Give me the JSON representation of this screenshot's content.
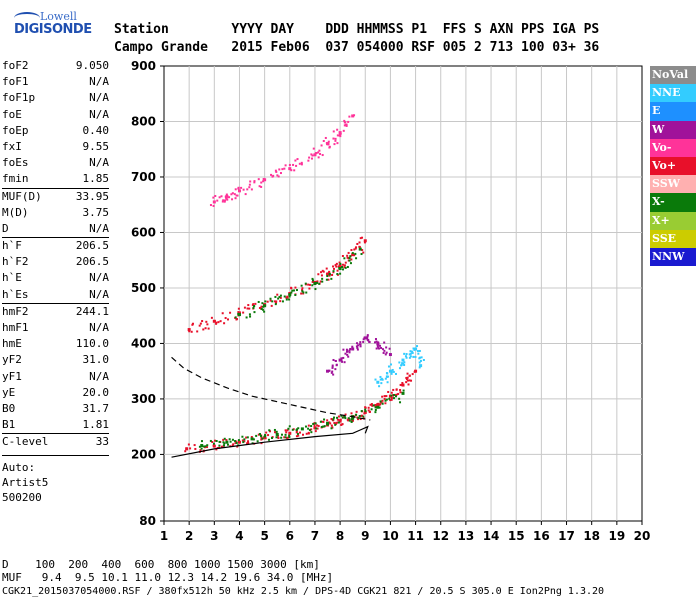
{
  "logo": {
    "line1": "Lowell",
    "line2": "DIGISONDE"
  },
  "header": {
    "line1": "Station        YYYY DAY    DDD HHMMSS P1  FFS S AXN PPS IGA PS",
    "line2": "Campo Grande   2015 Feb06  037 054000 RSF 005 2 713 100 03+ 36"
  },
  "params": [
    {
      "k": "foF2",
      "v": "9.050"
    },
    {
      "k": "foF1",
      "v": "N/A"
    },
    {
      "k": "foF1p",
      "v": "N/A"
    },
    {
      "k": "foE",
      "v": "N/A"
    },
    {
      "k": "foEp",
      "v": "0.40"
    },
    {
      "k": "fxI",
      "v": "9.55"
    },
    {
      "k": "foEs",
      "v": "N/A"
    },
    {
      "k": "fmin",
      "v": "1.85"
    },
    {
      "k": "MUF(D)",
      "v": "33.95",
      "sep": true
    },
    {
      "k": "M(D)",
      "v": "3.75"
    },
    {
      "k": "D",
      "v": "N/A"
    },
    {
      "k": "h`F",
      "v": "206.5",
      "sep": true
    },
    {
      "k": "h`F2",
      "v": "206.5"
    },
    {
      "k": "h`E",
      "v": "N/A"
    },
    {
      "k": "h`Es",
      "v": "N/A"
    },
    {
      "k": "hmF2",
      "v": "244.1",
      "sep": true
    },
    {
      "k": "hmF1",
      "v": "N/A"
    },
    {
      "k": "hmE",
      "v": "110.0"
    },
    {
      "k": "yF2",
      "v": "31.0"
    },
    {
      "k": "yF1",
      "v": "N/A"
    },
    {
      "k": "yE",
      "v": "20.0"
    },
    {
      "k": "B0",
      "v": "31.7"
    },
    {
      "k": "B1",
      "v": "1.81"
    },
    {
      "k": "C-level",
      "v": "33",
      "sep": true
    }
  ],
  "misc": {
    "a": "Auto:",
    "b": "Artist5",
    "c": "500200"
  },
  "bottom": {
    "line1": "D    100  200  400  600  800 1000 1500 3000 [km]",
    "line2": "MUF   9.4  9.5 10.1 11.0 12.3 14.2 19.6 34.0 [MHz]"
  },
  "footer": "CGK21_2015037054000.RSF / 380fx512h 50 kHz 2.5 km / DPS-4D CGK21 821 / 20.5 S 305.0 E Ion2Png 1.3.20",
  "legend": [
    {
      "label": "NoVal",
      "color": "#8c8c8c"
    },
    {
      "label": "NNE",
      "color": "#33ccff"
    },
    {
      "label": "E",
      "color": "#1e90ff"
    },
    {
      "label": "W",
      "color": "#a0129a"
    },
    {
      "label": "Vo-",
      "color": "#ff3399"
    },
    {
      "label": "Vo+",
      "color": "#e8102a"
    },
    {
      "label": "SSW",
      "color": "#ffb0b0"
    },
    {
      "label": "X-",
      "color": "#0a7a0a"
    },
    {
      "label": "X+",
      "color": "#99cc33"
    },
    {
      "label": "SSE",
      "color": "#cccc00"
    },
    {
      "label": "NNW",
      "color": "#1a1ad0"
    }
  ],
  "chart_data": {
    "type": "scatter",
    "title": "",
    "xlabel": "",
    "ylabel": "",
    "xlim": [
      1,
      20
    ],
    "ylim": [
      80,
      900
    ],
    "x_ticks": [
      1,
      2,
      3,
      4,
      5,
      6,
      7,
      8,
      9,
      10,
      11,
      12,
      13,
      14,
      15,
      16,
      17,
      18,
      19,
      20
    ],
    "y_ticks": [
      80,
      200,
      300,
      400,
      500,
      600,
      700,
      800,
      900
    ],
    "grid": true,
    "legend_position": "right",
    "series": [
      {
        "color": "#e8102a",
        "x": [
          1.9,
          3.0,
          4.0,
          5.0,
          6.0,
          7.0,
          7.5,
          8.0,
          8.5,
          9.0,
          9.5,
          10.0,
          10.5,
          11.0
        ],
        "y": [
          210,
          215,
          222,
          230,
          238,
          248,
          253,
          260,
          268,
          276,
          290,
          305,
          325,
          350
        ]
      },
      {
        "color": "#0a7a0a",
        "x": [
          2.5,
          3.5,
          4.5,
          5.5,
          6.5,
          7.5,
          8.5,
          9.5,
          10.5
        ],
        "y": [
          216,
          222,
          228,
          236,
          246,
          256,
          268,
          285,
          310
        ]
      },
      {
        "color": "#e8102a",
        "x": [
          2.0,
          3.0,
          4.0,
          5.0,
          6.0,
          7.0,
          7.5,
          8.0,
          8.5,
          9.0
        ],
        "y": [
          425,
          440,
          455,
          470,
          490,
          510,
          525,
          540,
          560,
          585
        ]
      },
      {
        "color": "#0a7a0a",
        "x": [
          4.0,
          5.0,
          6.0,
          7.0,
          8.0,
          8.8
        ],
        "y": [
          452,
          468,
          488,
          508,
          535,
          570
        ]
      },
      {
        "color": "#ff3399",
        "x": [
          3.0,
          3.5,
          4.0,
          5.0,
          6.0,
          7.0,
          7.5,
          8.0,
          8.5
        ],
        "y": [
          655,
          665,
          675,
          695,
          715,
          740,
          760,
          780,
          810
        ]
      },
      {
        "color": "#a0129a",
        "x": [
          7.5,
          8.0,
          8.5,
          9.0,
          9.5,
          10.0
        ],
        "y": [
          350,
          370,
          390,
          410,
          400,
          380
        ]
      },
      {
        "color": "#33ccff",
        "x": [
          9.5,
          10.0,
          10.5,
          11.0,
          11.2
        ],
        "y": [
          330,
          350,
          370,
          390,
          360
        ]
      }
    ],
    "profile_line": {
      "x": [
        1.3,
        3.0,
        5.0,
        7.0,
        8.5,
        8.8,
        9.1,
        9.0
      ],
      "y": [
        195,
        210,
        222,
        232,
        238,
        244,
        250,
        238
      ]
    },
    "dashed_line": {
      "x": [
        1.3,
        1.8,
        2.5,
        3.5,
        4.5,
        5.5,
        6.5,
        7.5,
        8.5,
        9.2
      ],
      "y": [
        375,
        355,
        338,
        320,
        305,
        295,
        285,
        275,
        268,
        262
      ]
    }
  }
}
